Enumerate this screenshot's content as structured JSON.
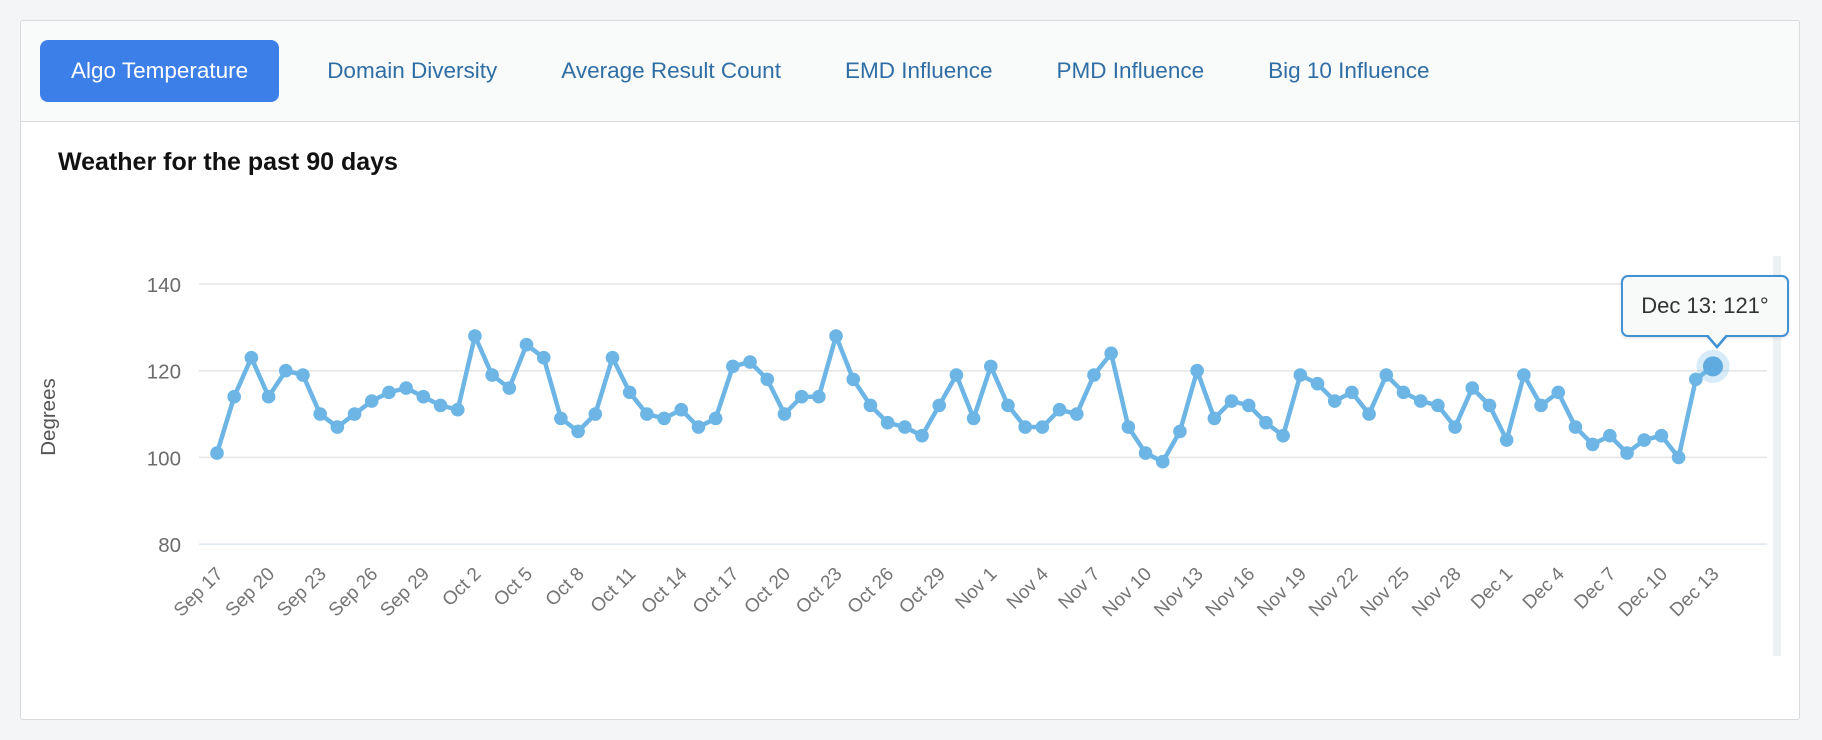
{
  "colors": {
    "active_tab_bg": "#3c7fe9",
    "active_tab_text": "#ffffff",
    "tab_text": "#2f6ea5",
    "series_line": "#6cb5e5",
    "series_point_hover": "#5fabdf",
    "tooltip_border": "#4192d4",
    "gridline": "#e5e5e5"
  },
  "tabs": [
    {
      "label": "Algo Temperature",
      "active": true
    },
    {
      "label": "Domain Diversity",
      "active": false
    },
    {
      "label": "Average Result Count",
      "active": false
    },
    {
      "label": "EMD Influence",
      "active": false
    },
    {
      "label": "PMD Influence",
      "active": false
    },
    {
      "label": "Big 10 Influence",
      "active": false
    }
  ],
  "tooltip": {
    "text": "Dec 13: 121°"
  },
  "chart_data": {
    "type": "line",
    "title": "Weather for the past 90 days",
    "xlabel": "",
    "ylabel": "Degrees",
    "ylim": [
      80,
      140
    ],
    "yticks": [
      140,
      120,
      100,
      80
    ],
    "tick_step": 3,
    "grid": "horizontal",
    "legend": "none",
    "unit": "°",
    "hovered_point": {
      "x": "Dec 13",
      "value": 121
    },
    "x": [
      "Sep 17",
      "Sep 18",
      "Sep 19",
      "Sep 20",
      "Sep 21",
      "Sep 22",
      "Sep 23",
      "Sep 24",
      "Sep 25",
      "Sep 26",
      "Sep 27",
      "Sep 28",
      "Sep 29",
      "Sep 30",
      "Oct 1",
      "Oct 2",
      "Oct 3",
      "Oct 4",
      "Oct 5",
      "Oct 6",
      "Oct 7",
      "Oct 8",
      "Oct 9",
      "Oct 10",
      "Oct 11",
      "Oct 12",
      "Oct 13",
      "Oct 14",
      "Oct 15",
      "Oct 16",
      "Oct 17",
      "Oct 18",
      "Oct 19",
      "Oct 20",
      "Oct 21",
      "Oct 22",
      "Oct 23",
      "Oct 24",
      "Oct 25",
      "Oct 26",
      "Oct 27",
      "Oct 28",
      "Oct 29",
      "Oct 30",
      "Oct 31",
      "Nov 1",
      "Nov 2",
      "Nov 3",
      "Nov 4",
      "Nov 5",
      "Nov 6",
      "Nov 7",
      "Nov 8",
      "Nov 9",
      "Nov 10",
      "Nov 11",
      "Nov 12",
      "Nov 13",
      "Nov 14",
      "Nov 15",
      "Nov 16",
      "Nov 17",
      "Nov 18",
      "Nov 19",
      "Nov 20",
      "Nov 21",
      "Nov 22",
      "Nov 23",
      "Nov 24",
      "Nov 25",
      "Nov 26",
      "Nov 27",
      "Nov 28",
      "Nov 29",
      "Nov 30",
      "Dec 1",
      "Dec 2",
      "Dec 3",
      "Dec 4",
      "Dec 5",
      "Dec 6",
      "Dec 7",
      "Dec 8",
      "Dec 9",
      "Dec 10",
      "Dec 11",
      "Dec 12",
      "Dec 13"
    ],
    "values": [
      101,
      114,
      123,
      114,
      120,
      119,
      110,
      107,
      110,
      113,
      115,
      116,
      114,
      112,
      111,
      128,
      119,
      116,
      126,
      123,
      109,
      106,
      110,
      123,
      115,
      110,
      109,
      111,
      107,
      109,
      121,
      122,
      118,
      110,
      114,
      114,
      128,
      118,
      112,
      108,
      107,
      105,
      112,
      119,
      109,
      121,
      112,
      107,
      107,
      111,
      110,
      119,
      124,
      107,
      101,
      99,
      106,
      120,
      109,
      113,
      112,
      108,
      105,
      119,
      117,
      113,
      115,
      110,
      119,
      115,
      113,
      112,
      107,
      116,
      112,
      104,
      119,
      112,
      115,
      107,
      103,
      105,
      101,
      104,
      105,
      100,
      118,
      121
    ]
  }
}
